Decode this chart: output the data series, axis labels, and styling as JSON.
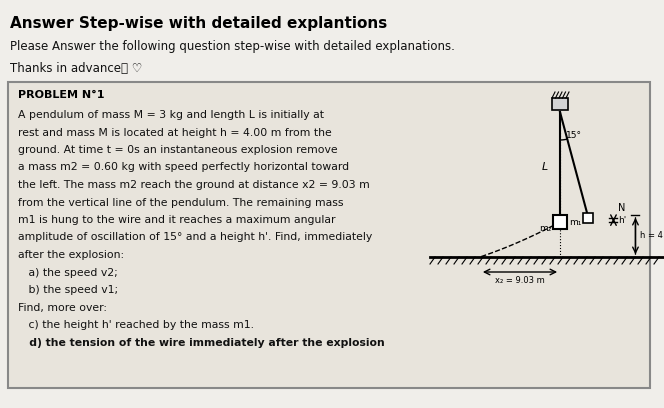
{
  "title": "Answer Step-wise with detailed explantions",
  "subtitle": "Please Answer the following question step-wise with detailed explanations.",
  "thanks": "Thanks in advance🙏 ♡",
  "problem_title": "PROBLEM N°1",
  "problem_lines": [
    "A pendulum of mass M = 3 kg and length L is initially at",
    "rest and mass M is located at height h = 4.00 m from the",
    "ground. At time t = 0s an instantaneous explosion remove",
    "a mass m2 = 0.60 kg with speed perfectly horizontal toward",
    "the left. The mass m2 reach the ground at distance x2 = 9.03 m",
    "from the vertical line of the pendulum. The remaining mass",
    "m1 is hung to the wire and it reaches a maximum angular",
    "amplitude of oscillation of 15° and a height h'. Find, immediately",
    "after the explosion:"
  ],
  "q_ab": [
    "   a) the speed v2;",
    "   b) the speed v1;"
  ],
  "find_more": "Find, more over:",
  "q_cd": [
    "   c) the height h' reached by the mass m1.",
    "   d) the tension of the wire immediately after the explosion"
  ],
  "bg_color": "#e8e4dc",
  "outer_bg": "#f0eeea",
  "box_bg": "#e8e4dc",
  "box_border": "#888888",
  "title_color": "#000000",
  "text_color": "#111111"
}
